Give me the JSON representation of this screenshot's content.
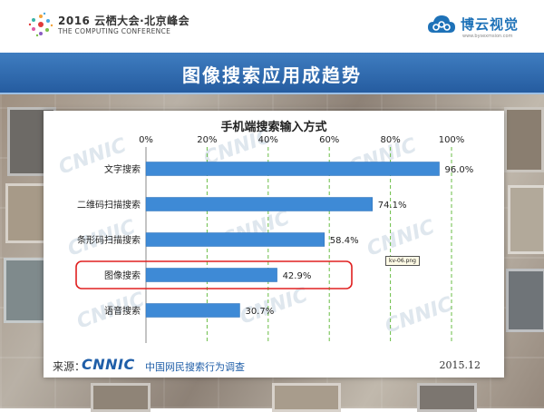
{
  "header": {
    "conference_title": "2016 云栖大会·北京峰会",
    "conference_subtitle": "THE COMPUTING CONFERENCE",
    "brand_name": "博云视觉",
    "brand_url": "www.bysexmsion.com"
  },
  "slide_title": "图像搜索应用成趋势",
  "chart_data": {
    "type": "bar",
    "orientation": "horizontal",
    "title": "手机端搜索输入方式",
    "categories": [
      "文字搜索",
      "二维码扫描搜索",
      "条形码扫描搜索",
      "图像搜索",
      "语音搜索"
    ],
    "values": [
      96.0,
      74.1,
      58.4,
      42.9,
      30.7
    ],
    "value_labels": [
      "96.0%",
      "74.1%",
      "58.4%",
      "42.9%",
      "30.7%"
    ],
    "xlim": [
      0,
      100
    ],
    "ticks": [
      0,
      20,
      40,
      60,
      80,
      100
    ],
    "tick_labels": [
      "0%",
      "20%",
      "40%",
      "60%",
      "80%",
      "100%"
    ],
    "axis_position": "top",
    "grid": true,
    "bar_color": "#3e8ad6",
    "grid_color": "#6abd45",
    "highlighted_category": "图像搜索",
    "highlight_color": "#e02020"
  },
  "tooltip": "kv-06.png",
  "footer": {
    "source_prefix": "来源：",
    "source_logo": "CNNIC",
    "source_text": "中国网民搜索行为调查",
    "date": "2015.12"
  }
}
